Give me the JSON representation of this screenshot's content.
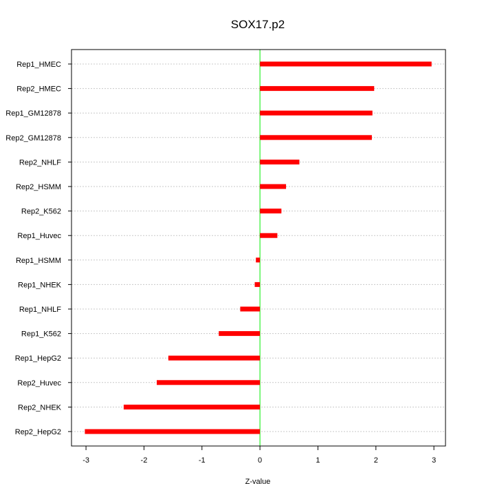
{
  "chart_data": {
    "type": "bar",
    "orientation": "horizontal",
    "title": "SOX17.p2",
    "xlabel": "Z-value",
    "ylabel": "",
    "categories": [
      "Rep1_HMEC",
      "Rep2_HMEC",
      "Rep1_GM12878",
      "Rep2_GM12878",
      "Rep2_NHLF",
      "Rep2_HSMM",
      "Rep2_K562",
      "Rep1_Huvec",
      "Rep1_HSMM",
      "Rep1_NHEK",
      "Rep1_NHLF",
      "Rep1_K562",
      "Rep1_HepG2",
      "Rep2_Huvec",
      "Rep2_NHEK",
      "Rep2_HepG2"
    ],
    "values": [
      2.96,
      1.97,
      1.94,
      1.93,
      0.68,
      0.45,
      0.37,
      0.3,
      -0.07,
      -0.09,
      -0.34,
      -0.71,
      -1.58,
      -1.78,
      -2.35,
      -3.02
    ],
    "xlim": [
      -3.25,
      3.2
    ],
    "xticks": [
      -3,
      -2,
      -1,
      0,
      1,
      2,
      3
    ],
    "xtick_labels": [
      "-3",
      "-2",
      "-1",
      "0",
      "1",
      "2",
      "3"
    ],
    "grid": "horizontal dotted",
    "reference_line": 0,
    "colors": {
      "bar": "#ff0000",
      "zero_line": "#00ee00",
      "grid": "#c8c8c8",
      "frame": "#000000"
    }
  }
}
